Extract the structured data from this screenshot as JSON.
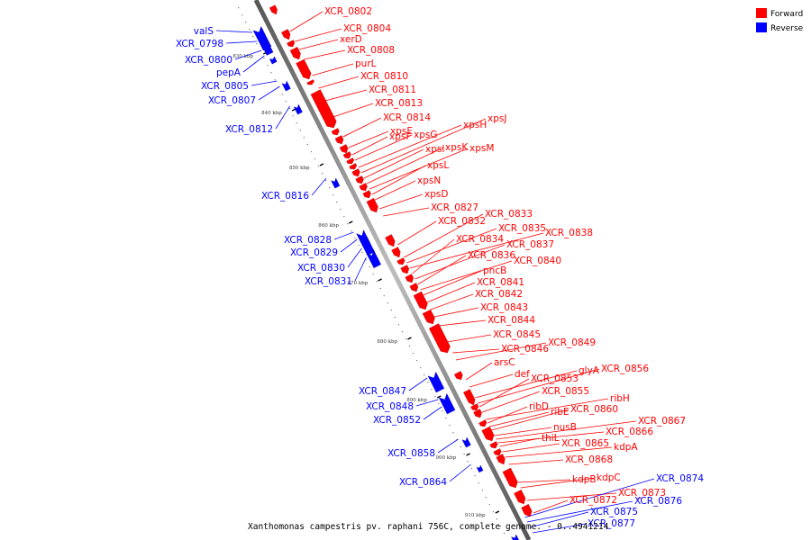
{
  "caption": "Xanthomonas campestris pv. raphani 756C, complete genome. - 0..4941214",
  "legend": [
    {
      "label": "Forward",
      "color": "#ff0000"
    },
    {
      "label": "Reverse",
      "color": "#0000ff"
    }
  ],
  "ticks": [
    "830 kbp",
    "840 kbp",
    "850 kbp",
    "860 kbp",
    "870 kbp",
    "880 kbp",
    "890 kbp",
    "900 kbp",
    "910 kbp"
  ],
  "forward_genes": [
    "XCR_0802",
    "XCR_0804",
    "xerD",
    "XCR_0808",
    "purL",
    "XCR_0810",
    "XCR_0811",
    "XCR_0813",
    "XCR_0814",
    "xpsE",
    "xpsF",
    "xpsG",
    "xpsH",
    "xpsJ",
    "xpsI",
    "xpsK",
    "xpsM",
    "xpsL",
    "xpsN",
    "xpsD",
    "XCR_0827",
    "XCR_0832",
    "XCR_0833",
    "XCR_0835",
    "XCR_0838",
    "XCR_0834",
    "XCR_0837",
    "XCR_0836",
    "XCR_0840",
    "pncB",
    "XCR_0841",
    "XCR_0842",
    "XCR_0843",
    "XCR_0844",
    "XCR_0845",
    "XCR_0846",
    "XCR_0849",
    "arsC",
    "def",
    "glyA",
    "XCR_0856",
    "XCR_0853",
    "XCR_0855",
    "ribH",
    "ribD",
    "ribE",
    "XCR_0860",
    "nusB",
    "XCR_0867",
    "XCR_0866",
    "thiL",
    "XCR_0865",
    "kdpA",
    "XCR_0868",
    "kdpB",
    "kdpC",
    "XCR_0873",
    "XCR_0872"
  ],
  "reverse_genes": [
    "valS",
    "XCR_0798",
    "XCR_0800",
    "pepA",
    "XCR_0805",
    "XCR_0807",
    "XCR_0812",
    "XCR_0816",
    "XCR_0828",
    "XCR_0829",
    "XCR_0830",
    "XCR_0831",
    "XCR_0847",
    "XCR_0848",
    "XCR_0852",
    "XCR_0858",
    "XCR_0864",
    "XCR_0874",
    "XCR_0876",
    "XCR_0875",
    "XCR_0877"
  ]
}
